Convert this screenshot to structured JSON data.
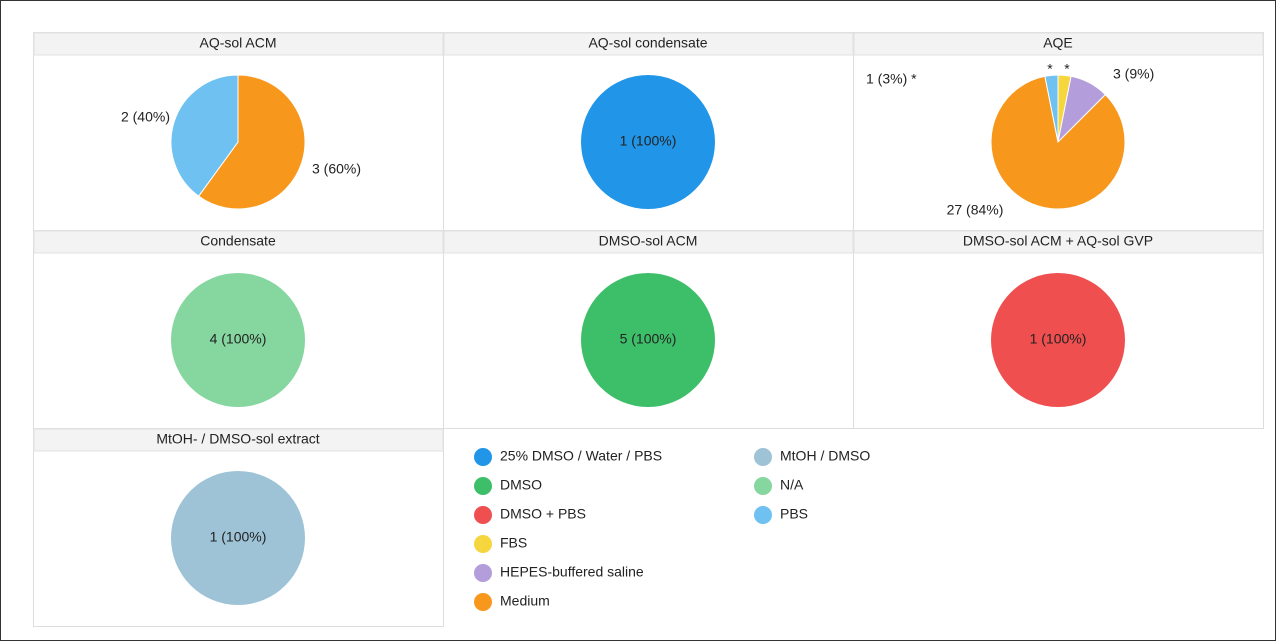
{
  "chart_data": [
    {
      "type": "pie",
      "title": "AQ-sol ACM",
      "categories": [
        "Medium",
        "PBS"
      ],
      "values": [
        3,
        2
      ],
      "value_labels": [
        "3 (60%)",
        "2 (40%)"
      ],
      "colors": [
        "#f7981d",
        "#6ec1f0"
      ]
    },
    {
      "type": "pie",
      "title": "AQ-sol condensate",
      "categories": [
        "25% DMSO / Water / PBS"
      ],
      "values": [
        1
      ],
      "value_labels": [
        "1 (100%)"
      ],
      "colors": [
        "#2196e8"
      ]
    },
    {
      "type": "pie",
      "title": "AQE",
      "categories": [
        "FBS",
        "HEPES-buffered saline",
        "Medium",
        "PBS"
      ],
      "values": [
        1,
        3,
        27,
        1
      ],
      "value_labels": [
        "*",
        "3 (9%)",
        "27 (84%)",
        "*"
      ],
      "colors": [
        "#f5d63d",
        "#b39ddb",
        "#f7981d",
        "#6ec1f0"
      ],
      "annotations": [
        "1 (3%) *"
      ]
    },
    {
      "type": "pie",
      "title": "Condensate",
      "categories": [
        "N/A"
      ],
      "values": [
        4
      ],
      "value_labels": [
        "4 (100%)"
      ],
      "colors": [
        "#86d6a0"
      ]
    },
    {
      "type": "pie",
      "title": "DMSO-sol ACM",
      "categories": [
        "DMSO"
      ],
      "values": [
        5
      ],
      "value_labels": [
        "5 (100%)"
      ],
      "colors": [
        "#3dbf6a"
      ]
    },
    {
      "type": "pie",
      "title": "DMSO-sol ACM + AQ-sol GVP",
      "categories": [
        "DMSO + PBS"
      ],
      "values": [
        1
      ],
      "value_labels": [
        "1 (100%)"
      ],
      "colors": [
        "#ef4f4f"
      ]
    },
    {
      "type": "pie",
      "title": "MtOH- / DMSO-sol extract",
      "categories": [
        "MtOH / DMSO"
      ],
      "values": [
        1
      ],
      "value_labels": [
        "1 (100%)"
      ],
      "colors": [
        "#9ec3d6"
      ]
    }
  ],
  "legend": [
    {
      "name": "25% DMSO / Water / PBS",
      "color": "#2196e8"
    },
    {
      "name": "DMSO",
      "color": "#3dbf6a"
    },
    {
      "name": "DMSO + PBS",
      "color": "#ef4f4f"
    },
    {
      "name": "FBS",
      "color": "#f5d63d"
    },
    {
      "name": "HEPES-buffered saline",
      "color": "#b39ddb"
    },
    {
      "name": "Medium",
      "color": "#f7981d"
    },
    {
      "name": "MtOH / DMSO",
      "color": "#9ec3d6"
    },
    {
      "name": "N/A",
      "color": "#86d6a0"
    },
    {
      "name": "PBS",
      "color": "#6ec1f0"
    }
  ]
}
